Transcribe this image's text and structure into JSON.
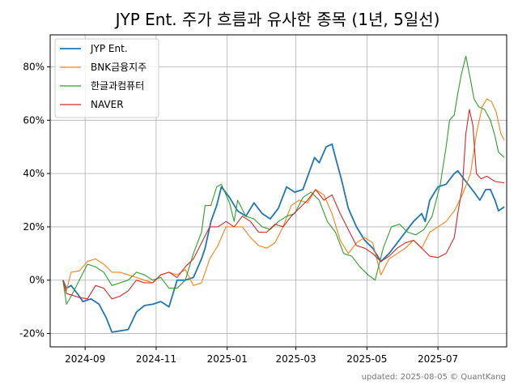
{
  "chart_data": {
    "type": "line",
    "title": "JYP Ent. 주가 흐름과 유사한 종목 (1년, 5일선)",
    "xlabel": "",
    "ylabel": "",
    "x_ticks": [
      "2024-09",
      "2024-11",
      "2025-01",
      "2025-03",
      "2025-05",
      "2025-07"
    ],
    "y_ticks": [
      "-20%",
      "0%",
      "20%",
      "40%",
      "60%",
      "80%"
    ],
    "xlim": [
      "2024-08-02",
      "2025-08-29"
    ],
    "ylim": [
      -25,
      92
    ],
    "grid": true,
    "legend_position": "top-left",
    "footer": "updated: 2025-08-05 © QuantKang",
    "series": [
      {
        "name": "JYP Ent.",
        "color": "#1f77b4",
        "points": [
          [
            "2024-08-13",
            0
          ],
          [
            "2024-08-16",
            -3
          ],
          [
            "2024-08-20",
            -2
          ],
          [
            "2024-08-27",
            -6
          ],
          [
            "2024-08-30",
            -8
          ],
          [
            "2024-09-06",
            -7
          ],
          [
            "2024-09-13",
            -9
          ],
          [
            "2024-09-19",
            -14
          ],
          [
            "2024-09-24",
            -19.5
          ],
          [
            "2024-10-01",
            -19
          ],
          [
            "2024-10-08",
            -18.5
          ],
          [
            "2024-10-15",
            -12
          ],
          [
            "2024-10-22",
            -9.5
          ],
          [
            "2024-10-29",
            -9
          ],
          [
            "2024-11-05",
            -8
          ],
          [
            "2024-11-12",
            -10
          ],
          [
            "2024-11-19",
            0
          ],
          [
            "2024-11-26",
            0
          ],
          [
            "2024-12-03",
            1
          ],
          [
            "2024-12-10",
            8
          ],
          [
            "2024-12-13",
            12
          ],
          [
            "2024-12-18",
            22
          ],
          [
            "2024-12-23",
            28
          ],
          [
            "2024-12-27",
            35
          ],
          [
            "2025-01-03",
            31
          ],
          [
            "2025-01-10",
            26
          ],
          [
            "2025-01-17",
            24
          ],
          [
            "2025-01-24",
            29
          ],
          [
            "2025-01-31",
            25
          ],
          [
            "2025-02-07",
            23
          ],
          [
            "2025-02-14",
            27
          ],
          [
            "2025-02-21",
            35
          ],
          [
            "2025-02-28",
            33
          ],
          [
            "2025-03-07",
            34
          ],
          [
            "2025-03-12",
            40
          ],
          [
            "2025-03-17",
            46
          ],
          [
            "2025-03-21",
            44
          ],
          [
            "2025-03-27",
            50
          ],
          [
            "2025-04-01",
            51
          ],
          [
            "2025-04-04",
            46
          ],
          [
            "2025-04-09",
            38
          ],
          [
            "2025-04-15",
            27
          ],
          [
            "2025-04-22",
            20
          ],
          [
            "2025-04-29",
            15
          ],
          [
            "2025-05-06",
            12
          ],
          [
            "2025-05-13",
            7
          ],
          [
            "2025-05-20",
            10
          ],
          [
            "2025-05-27",
            14
          ],
          [
            "2025-06-03",
            18
          ],
          [
            "2025-06-10",
            22
          ],
          [
            "2025-06-17",
            25
          ],
          [
            "2025-06-20",
            22
          ],
          [
            "2025-06-24",
            30
          ],
          [
            "2025-07-01",
            35
          ],
          [
            "2025-07-08",
            36
          ],
          [
            "2025-07-15",
            40
          ],
          [
            "2025-07-18",
            41
          ],
          [
            "2025-07-25",
            37
          ],
          [
            "2025-08-01",
            33
          ],
          [
            "2025-08-06",
            30
          ],
          [
            "2025-08-11",
            34
          ],
          [
            "2025-08-15",
            34
          ],
          [
            "2025-08-19",
            30
          ],
          [
            "2025-08-22",
            26
          ],
          [
            "2025-08-27",
            27.5
          ]
        ]
      },
      {
        "name": "BNK금융지주",
        "color": "#ff7f0e",
        "points": [
          [
            "2024-08-13",
            0
          ],
          [
            "2024-08-16",
            -4
          ],
          [
            "2024-08-20",
            3
          ],
          [
            "2024-08-27",
            3.5
          ],
          [
            "2024-09-03",
            7
          ],
          [
            "2024-09-10",
            8
          ],
          [
            "2024-09-17",
            6
          ],
          [
            "2024-09-24",
            3
          ],
          [
            "2024-10-01",
            3
          ],
          [
            "2024-10-08",
            2
          ],
          [
            "2024-10-15",
            1
          ],
          [
            "2024-10-22",
            0
          ],
          [
            "2024-10-29",
            -1
          ],
          [
            "2024-11-05",
            2
          ],
          [
            "2024-11-12",
            3
          ],
          [
            "2024-11-19",
            2
          ],
          [
            "2024-11-26",
            4
          ],
          [
            "2024-12-03",
            -2
          ],
          [
            "2024-12-10",
            -1
          ],
          [
            "2024-12-17",
            8
          ],
          [
            "2024-12-24",
            13
          ],
          [
            "2024-12-31",
            20
          ],
          [
            "2025-01-07",
            20
          ],
          [
            "2025-01-14",
            20
          ],
          [
            "2025-01-21",
            16
          ],
          [
            "2025-01-28",
            13
          ],
          [
            "2025-02-04",
            12
          ],
          [
            "2025-02-11",
            14
          ],
          [
            "2025-02-18",
            20
          ],
          [
            "2025-02-25",
            28
          ],
          [
            "2025-03-04",
            30
          ],
          [
            "2025-03-11",
            29
          ],
          [
            "2025-03-18",
            34
          ],
          [
            "2025-03-25",
            32
          ],
          [
            "2025-04-01",
            25
          ],
          [
            "2025-04-08",
            15
          ],
          [
            "2025-04-15",
            10
          ],
          [
            "2025-04-22",
            14
          ],
          [
            "2025-04-29",
            16
          ],
          [
            "2025-05-06",
            14
          ],
          [
            "2025-05-13",
            2
          ],
          [
            "2025-05-20",
            8
          ],
          [
            "2025-05-27",
            10
          ],
          [
            "2025-06-03",
            12
          ],
          [
            "2025-06-10",
            15
          ],
          [
            "2025-06-17",
            12
          ],
          [
            "2025-06-24",
            18
          ],
          [
            "2025-07-01",
            20
          ],
          [
            "2025-07-08",
            22
          ],
          [
            "2025-07-15",
            26
          ],
          [
            "2025-07-22",
            32
          ],
          [
            "2025-07-29",
            40
          ],
          [
            "2025-08-03",
            55
          ],
          [
            "2025-08-08",
            65
          ],
          [
            "2025-08-12",
            68
          ],
          [
            "2025-08-16",
            67
          ],
          [
            "2025-08-20",
            63
          ],
          [
            "2025-08-24",
            55
          ],
          [
            "2025-08-27",
            52.5
          ]
        ]
      },
      {
        "name": "한글과컴퓨터",
        "color": "#2ca02c",
        "points": [
          [
            "2024-08-13",
            0
          ],
          [
            "2024-08-16",
            -9
          ],
          [
            "2024-08-20",
            -6
          ],
          [
            "2024-08-27",
            0
          ],
          [
            "2024-09-03",
            6
          ],
          [
            "2024-09-10",
            5
          ],
          [
            "2024-09-17",
            3
          ],
          [
            "2024-09-24",
            -2
          ],
          [
            "2024-10-01",
            -1
          ],
          [
            "2024-10-08",
            0
          ],
          [
            "2024-10-15",
            3
          ],
          [
            "2024-10-22",
            2
          ],
          [
            "2024-10-29",
            0
          ],
          [
            "2024-11-05",
            1
          ],
          [
            "2024-11-12",
            -3
          ],
          [
            "2024-11-19",
            -3
          ],
          [
            "2024-11-26",
            0
          ],
          [
            "2024-12-03",
            10
          ],
          [
            "2024-12-10",
            18
          ],
          [
            "2024-12-13",
            28
          ],
          [
            "2024-12-18",
            28
          ],
          [
            "2024-12-23",
            35
          ],
          [
            "2024-12-27",
            36
          ],
          [
            "2025-01-03",
            29
          ],
          [
            "2025-01-07",
            22
          ],
          [
            "2025-01-10",
            30
          ],
          [
            "2025-01-17",
            24
          ],
          [
            "2025-01-24",
            23
          ],
          [
            "2025-01-31",
            20
          ],
          [
            "2025-02-07",
            19
          ],
          [
            "2025-02-14",
            22
          ],
          [
            "2025-02-21",
            24
          ],
          [
            "2025-02-28",
            25
          ],
          [
            "2025-03-07",
            31
          ],
          [
            "2025-03-14",
            33
          ],
          [
            "2025-03-21",
            30
          ],
          [
            "2025-03-28",
            22
          ],
          [
            "2025-04-04",
            18
          ],
          [
            "2025-04-11",
            10
          ],
          [
            "2025-04-18",
            9
          ],
          [
            "2025-04-25",
            5
          ],
          [
            "2025-05-02",
            2
          ],
          [
            "2025-05-08",
            0
          ],
          [
            "2025-05-15",
            12
          ],
          [
            "2025-05-22",
            20
          ],
          [
            "2025-05-29",
            21
          ],
          [
            "2025-06-05",
            18
          ],
          [
            "2025-06-12",
            17
          ],
          [
            "2025-06-19",
            19
          ],
          [
            "2025-06-26",
            24
          ],
          [
            "2025-07-03",
            36
          ],
          [
            "2025-07-08",
            50
          ],
          [
            "2025-07-11",
            60
          ],
          [
            "2025-07-15",
            62
          ],
          [
            "2025-07-18",
            70
          ],
          [
            "2025-07-21",
            77
          ],
          [
            "2025-07-25",
            84
          ],
          [
            "2025-07-29",
            75
          ],
          [
            "2025-08-01",
            68
          ],
          [
            "2025-08-05",
            65
          ],
          [
            "2025-08-10",
            64
          ],
          [
            "2025-08-15",
            60
          ],
          [
            "2025-08-19",
            54
          ],
          [
            "2025-08-22",
            48
          ],
          [
            "2025-08-27",
            46
          ]
        ]
      },
      {
        "name": "NAVER",
        "color": "#d62728",
        "points": [
          [
            "2024-08-13",
            0
          ],
          [
            "2024-08-16",
            -5
          ],
          [
            "2024-08-20",
            -5.5
          ],
          [
            "2024-08-27",
            -6.5
          ],
          [
            "2024-09-03",
            -7
          ],
          [
            "2024-09-10",
            -2
          ],
          [
            "2024-09-17",
            -3
          ],
          [
            "2024-09-24",
            -7
          ],
          [
            "2024-10-01",
            -6
          ],
          [
            "2024-10-08",
            -4
          ],
          [
            "2024-10-15",
            0
          ],
          [
            "2024-10-22",
            -1
          ],
          [
            "2024-10-29",
            -1
          ],
          [
            "2024-11-05",
            2
          ],
          [
            "2024-11-12",
            3
          ],
          [
            "2024-11-19",
            1
          ],
          [
            "2024-11-26",
            5
          ],
          [
            "2024-12-03",
            8
          ],
          [
            "2024-12-10",
            14
          ],
          [
            "2024-12-17",
            20
          ],
          [
            "2024-12-24",
            20
          ],
          [
            "2024-12-31",
            22
          ],
          [
            "2025-01-07",
            20
          ],
          [
            "2025-01-14",
            24
          ],
          [
            "2025-01-21",
            22
          ],
          [
            "2025-01-28",
            18
          ],
          [
            "2025-02-04",
            18
          ],
          [
            "2025-02-11",
            21
          ],
          [
            "2025-02-18",
            20
          ],
          [
            "2025-02-25",
            24
          ],
          [
            "2025-03-04",
            27
          ],
          [
            "2025-03-11",
            30
          ],
          [
            "2025-03-18",
            34
          ],
          [
            "2025-03-25",
            30
          ],
          [
            "2025-04-01",
            32
          ],
          [
            "2025-04-08",
            25
          ],
          [
            "2025-04-15",
            19
          ],
          [
            "2025-04-22",
            13
          ],
          [
            "2025-04-29",
            12
          ],
          [
            "2025-05-06",
            10
          ],
          [
            "2025-05-13",
            7
          ],
          [
            "2025-05-20",
            9
          ],
          [
            "2025-05-27",
            12
          ],
          [
            "2025-06-03",
            14
          ],
          [
            "2025-06-10",
            15
          ],
          [
            "2025-06-17",
            12
          ],
          [
            "2025-06-24",
            9
          ],
          [
            "2025-07-01",
            8.5
          ],
          [
            "2025-07-08",
            10
          ],
          [
            "2025-07-15",
            16
          ],
          [
            "2025-07-18",
            25
          ],
          [
            "2025-07-22",
            35
          ],
          [
            "2025-07-25",
            55
          ],
          [
            "2025-07-28",
            64
          ],
          [
            "2025-07-31",
            58
          ],
          [
            "2025-08-03",
            40
          ],
          [
            "2025-08-07",
            38
          ],
          [
            "2025-08-12",
            39
          ],
          [
            "2025-08-19",
            37
          ],
          [
            "2025-08-27",
            36.5
          ]
        ]
      }
    ]
  }
}
